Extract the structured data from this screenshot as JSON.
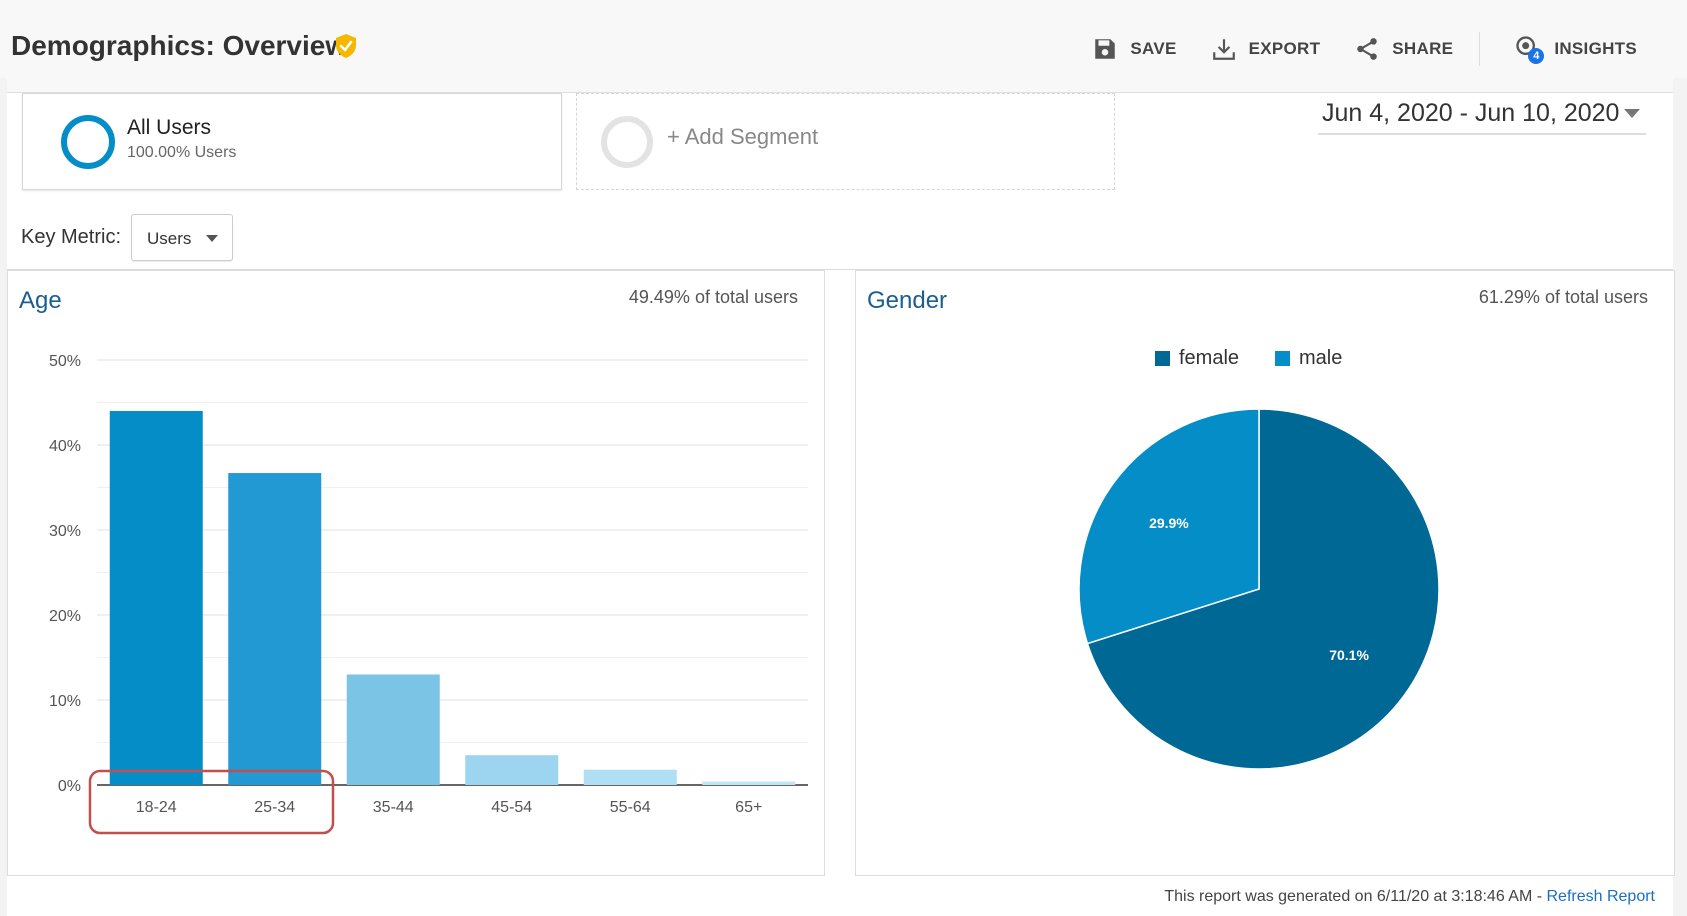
{
  "header": {
    "title": "Demographics: Overview",
    "verified_icon": "verified-shield-icon",
    "badge_color": "#f5b800",
    "actions": [
      {
        "label": "SAVE",
        "icon": "save-icon"
      },
      {
        "label": "EXPORT",
        "icon": "export-icon"
      },
      {
        "label": "SHARE",
        "icon": "share-icon"
      },
      {
        "label": "INSIGHTS",
        "icon": "insights-icon",
        "badge": "4"
      }
    ]
  },
  "segments": {
    "active": {
      "name": "All Users",
      "sub": "100.00% Users"
    },
    "add_label": "+ Add Segment"
  },
  "date_range": "Jun 4, 2020 - Jun 10, 2020",
  "key_metric": {
    "label": "Key Metric:",
    "value": "Users"
  },
  "age_panel": {
    "title": "Age",
    "pct_of_total": "49.49% of total users"
  },
  "gender_panel": {
    "title": "Gender",
    "pct_of_total": "61.29% of total users"
  },
  "footer": {
    "note": "This report was generated on 6/11/20 at 3:18:46 AM - ",
    "refresh": "Refresh Report"
  },
  "colors": {
    "accent": "#058dc7",
    "highlight_box": "#c0504d",
    "title_blue": "#1a5f8f"
  },
  "chart_data": [
    {
      "type": "bar",
      "title": "Age",
      "categories": [
        "18-24",
        "25-34",
        "35-44",
        "45-54",
        "55-64",
        "65+"
      ],
      "values": [
        44,
        36.7,
        13,
        3.5,
        1.8,
        0.4
      ],
      "bar_colors": [
        "#058dc7",
        "#2299d3",
        "#7cc4e5",
        "#9dd4ef",
        "#b0dff4",
        "#bfe5f7"
      ],
      "ylim": [
        0,
        50
      ],
      "yticks": [
        "0%",
        "10%",
        "20%",
        "30%",
        "40%",
        "50%"
      ],
      "grid": true,
      "highlighted_categories": [
        "18-24",
        "25-34"
      ]
    },
    {
      "type": "pie",
      "title": "Gender",
      "series": [
        {
          "name": "female",
          "value": 70.1,
          "label": "70.1%",
          "color": "#006895"
        },
        {
          "name": "male",
          "value": 29.9,
          "label": "29.9%",
          "color": "#058dc7"
        }
      ],
      "legend_position": "top-center"
    }
  ]
}
